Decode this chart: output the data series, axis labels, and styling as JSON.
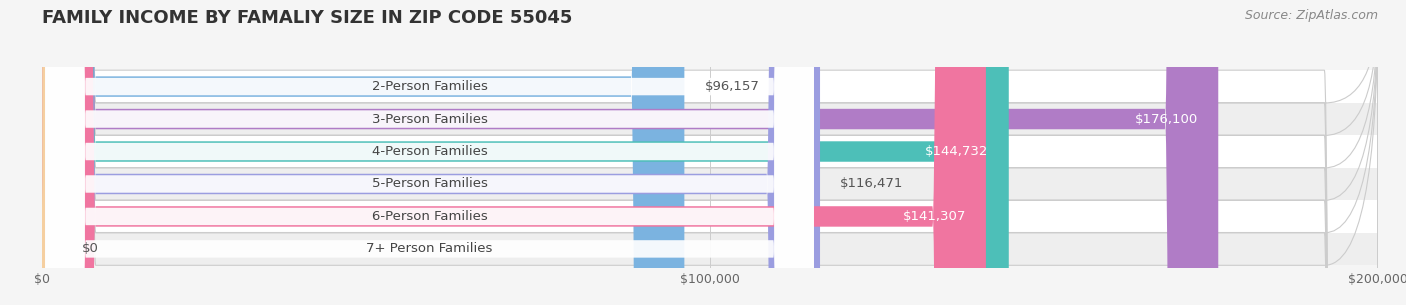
{
  "title": "FAMILY INCOME BY FAMALIY SIZE IN ZIP CODE 55045",
  "source": "Source: ZipAtlas.com",
  "categories": [
    "2-Person Families",
    "3-Person Families",
    "4-Person Families",
    "5-Person Families",
    "6-Person Families",
    "7+ Person Families"
  ],
  "values": [
    96157,
    176100,
    144732,
    116471,
    141307,
    0
  ],
  "bar_colors": [
    "#7bb3e0",
    "#b07cc6",
    "#4dbfb8",
    "#9b9de0",
    "#f075a0",
    "#f5cfa0"
  ],
  "label_colors": [
    "#555555",
    "#ffffff",
    "#ffffff",
    "#555555",
    "#ffffff",
    "#555555"
  ],
  "xlim": [
    0,
    200000
  ],
  "xtick_vals": [
    0,
    100000,
    200000
  ],
  "xtick_labels": [
    "$0",
    "$100,000",
    "$200,000"
  ],
  "bar_height": 0.62,
  "background_color": "#f5f5f5",
  "row_bg_colors": [
    "#ffffff",
    "#f5f5f5"
  ],
  "title_fontsize": 13,
  "label_fontsize": 9.5,
  "value_fontsize": 9.5,
  "source_fontsize": 9
}
